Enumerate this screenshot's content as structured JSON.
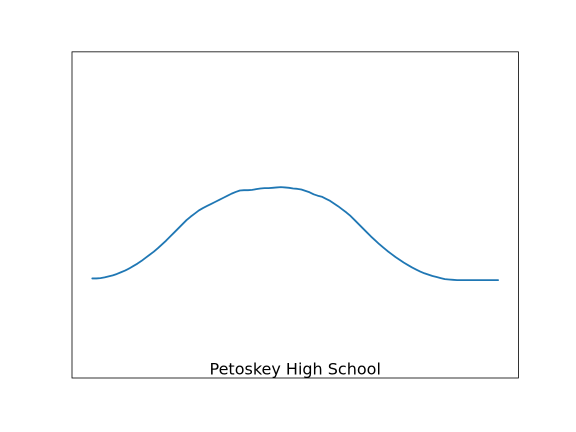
{
  "chart_data": {
    "type": "line",
    "title": "",
    "xlabel": "",
    "ylabel": "",
    "grid": false,
    "legend": "none",
    "x": [
      0,
      1,
      2,
      3,
      4,
      5,
      6,
      7,
      8,
      9,
      10,
      11,
      12,
      13,
      14,
      15,
      16,
      17,
      18,
      19,
      20,
      21,
      22,
      23,
      24,
      25,
      26,
      27,
      28,
      29,
      30,
      31,
      32,
      33,
      34,
      35,
      36,
      37,
      38,
      39,
      40,
      41,
      42,
      43,
      44,
      45,
      46,
      47,
      48,
      49,
      50,
      51,
      52,
      53,
      54,
      55,
      56,
      57,
      58,
      59,
      60,
      61,
      62,
      63,
      64,
      65,
      66,
      67,
      68,
      69,
      70,
      71,
      72,
      73,
      74,
      75,
      76,
      77,
      78,
      79,
      80,
      81,
      82,
      83,
      84,
      85,
      86,
      87,
      88,
      89,
      90,
      91,
      92,
      93,
      94,
      95,
      96,
      97,
      98,
      99
    ],
    "xlim": [
      -4.95,
      103.95
    ],
    "ylim": [
      0,
      0.95
    ],
    "series": [
      {
        "name": "",
        "color": "#1f77b4",
        "values": [
          0.29,
          0.29,
          0.291,
          0.293,
          0.296,
          0.299,
          0.303,
          0.308,
          0.313,
          0.319,
          0.326,
          0.333,
          0.341,
          0.35,
          0.359,
          0.368,
          0.378,
          0.389,
          0.4,
          0.412,
          0.424,
          0.436,
          0.448,
          0.46,
          0.47,
          0.479,
          0.488,
          0.495,
          0.501,
          0.507,
          0.513,
          0.519,
          0.525,
          0.531,
          0.537,
          0.542,
          0.546,
          0.547,
          0.547,
          0.548,
          0.55,
          0.552,
          0.553,
          0.553,
          0.554,
          0.555,
          0.556,
          0.555,
          0.554,
          0.552,
          0.551,
          0.549,
          0.545,
          0.541,
          0.535,
          0.531,
          0.528,
          0.522,
          0.516,
          0.508,
          0.5,
          0.491,
          0.482,
          0.472,
          0.46,
          0.448,
          0.436,
          0.424,
          0.412,
          0.401,
          0.39,
          0.38,
          0.37,
          0.361,
          0.352,
          0.344,
          0.336,
          0.329,
          0.322,
          0.316,
          0.31,
          0.305,
          0.301,
          0.297,
          0.294,
          0.291,
          0.288,
          0.287,
          0.286,
          0.285,
          0.285,
          0.285,
          0.285,
          0.285,
          0.285,
          0.285,
          0.285,
          0.285,
          0.285,
          0.285
        ]
      }
    ],
    "annotations": [
      {
        "text": "Petoskey High School",
        "x": 49.5,
        "y": 0.005
      }
    ]
  }
}
